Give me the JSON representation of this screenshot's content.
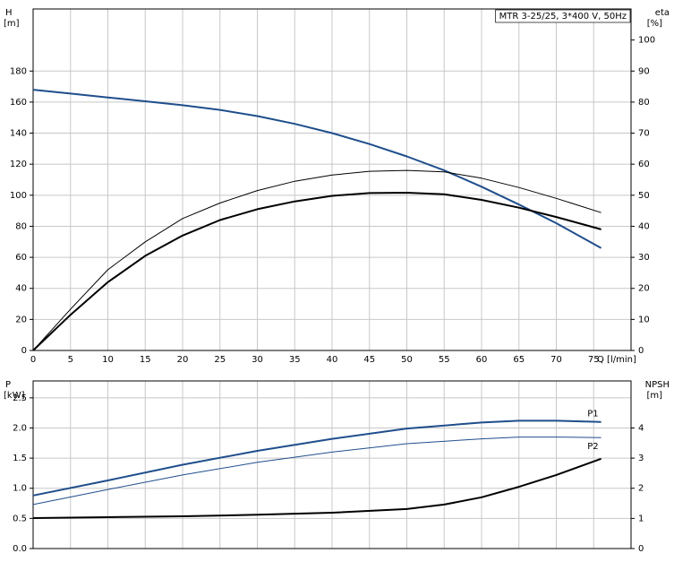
{
  "chart_data": [
    {
      "type": "line",
      "title": "MTR 3-25/25, 3*400 V, 50Hz",
      "y_label": "H",
      "y_unit": "[m]",
      "y2_label": "eta",
      "y2_unit": "[%]",
      "x_label": "Q [l/min]",
      "xlim": [
        0,
        80
      ],
      "xticks": [
        0,
        5,
        10,
        15,
        20,
        25,
        30,
        35,
        40,
        45,
        50,
        55,
        60,
        65,
        70,
        75
      ],
      "ylim": [
        0,
        220
      ],
      "yticks": [
        0,
        20,
        40,
        60,
        80,
        100,
        120,
        140,
        160,
        180
      ],
      "y2lim": [
        0,
        110
      ],
      "y2ticks": [
        0,
        10,
        20,
        30,
        40,
        50,
        60,
        70,
        80,
        90,
        100
      ],
      "grid": true,
      "series": [
        {
          "color": "#1f4e8c",
          "x": [
            0,
            5,
            10,
            15,
            20,
            25,
            30,
            35,
            40,
            45,
            50,
            55,
            60,
            65,
            70,
            76
          ],
          "values": [
            168,
            165.5,
            163,
            160.5,
            158,
            155,
            151,
            146,
            140,
            133,
            125,
            116,
            105.5,
            94,
            82,
            66
          ]
        },
        {
          "color": "#000000",
          "axis": "y2",
          "x": [
            0,
            5,
            10,
            15,
            20,
            25,
            30,
            35,
            40,
            45,
            50,
            55,
            60,
            65,
            70,
            76
          ],
          "values": [
            0,
            13.3,
            26,
            35,
            42.5,
            47.5,
            51.5,
            54.5,
            56.5,
            57.7,
            58,
            57.5,
            55.5,
            52.5,
            49,
            44.4
          ]
        },
        {
          "color": "#000000",
          "axis": "y2",
          "x": [
            0,
            5,
            10,
            15,
            20,
            25,
            30,
            35,
            40,
            45,
            50,
            55,
            60,
            65,
            70,
            76
          ],
          "values": [
            0,
            11.5,
            22,
            30.5,
            37,
            42,
            45.5,
            48,
            49.8,
            50.7,
            50.8,
            50.3,
            48.5,
            46,
            43,
            39
          ]
        }
      ]
    },
    {
      "type": "line",
      "y_label": "P",
      "y_unit": "[kW]",
      "y2_label": "NPSH",
      "y2_unit": "[m]",
      "xlim": [
        0,
        80
      ],
      "ylim": [
        0,
        2.78
      ],
      "yticks": [
        {
          "value": 0,
          "label": "0.0"
        },
        0.5,
        {
          "value": 1,
          "label": "1.0"
        },
        1.5,
        {
          "value": 2,
          "label": "2.0"
        },
        2.5
      ],
      "y2lim": [
        0,
        5.56
      ],
      "y2ticks": [
        0,
        1,
        2,
        3,
        4
      ],
      "grid": true,
      "series": [
        {
          "name": "P1",
          "color": "#1f4e8c",
          "x": [
            0,
            10,
            20,
            30,
            40,
            50,
            60,
            65,
            70,
            76
          ],
          "values": [
            0.88,
            1.13,
            1.39,
            1.62,
            1.82,
            1.99,
            2.09,
            2.12,
            2.12,
            2.1
          ]
        },
        {
          "name": "P2",
          "color": "#1f4e8c",
          "x": [
            0,
            10,
            20,
            30,
            40,
            50,
            60,
            65,
            70,
            76
          ],
          "values": [
            0.73,
            0.98,
            1.22,
            1.43,
            1.6,
            1.74,
            1.82,
            1.85,
            1.85,
            1.84
          ]
        },
        {
          "color": "#000000",
          "axis": "y2",
          "x": [
            0,
            10,
            20,
            30,
            40,
            50,
            55,
            60,
            65,
            70,
            76
          ],
          "values": [
            1.01,
            1.04,
            1.07,
            1.12,
            1.19,
            1.31,
            1.46,
            1.7,
            2.05,
            2.44,
            2.98
          ]
        }
      ]
    }
  ]
}
